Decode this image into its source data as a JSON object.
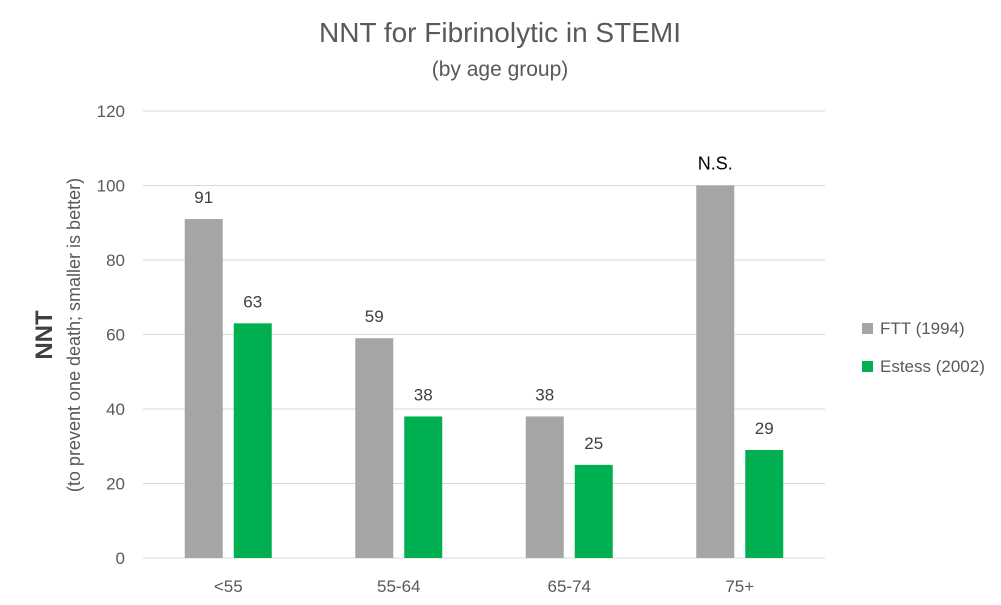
{
  "chart_data": {
    "type": "bar",
    "title": "NNT for Fibrinolytic in STEMI",
    "subtitle": "(by age group)",
    "ylabel": "NNT",
    "ylabel_sub": "(to prevent one death; smaller is better)",
    "xlabel": "",
    "ylim": [
      0,
      120
    ],
    "yticks": [
      0,
      20,
      40,
      60,
      80,
      100,
      120
    ],
    "grid": true,
    "legend_position": "right",
    "categories": [
      "<55",
      "55-64",
      "65-74",
      "75+"
    ],
    "series": [
      {
        "name": "FTT (1994)",
        "color": "#a5a5a5",
        "values": [
          91,
          59,
          38,
          100
        ],
        "labels": [
          "91",
          "59",
          "38",
          "N.S."
        ]
      },
      {
        "name": "Estess (2002)",
        "color": "#00b050",
        "values": [
          63,
          38,
          25,
          29
        ],
        "labels": [
          "63",
          "38",
          "25",
          "29"
        ]
      }
    ]
  }
}
